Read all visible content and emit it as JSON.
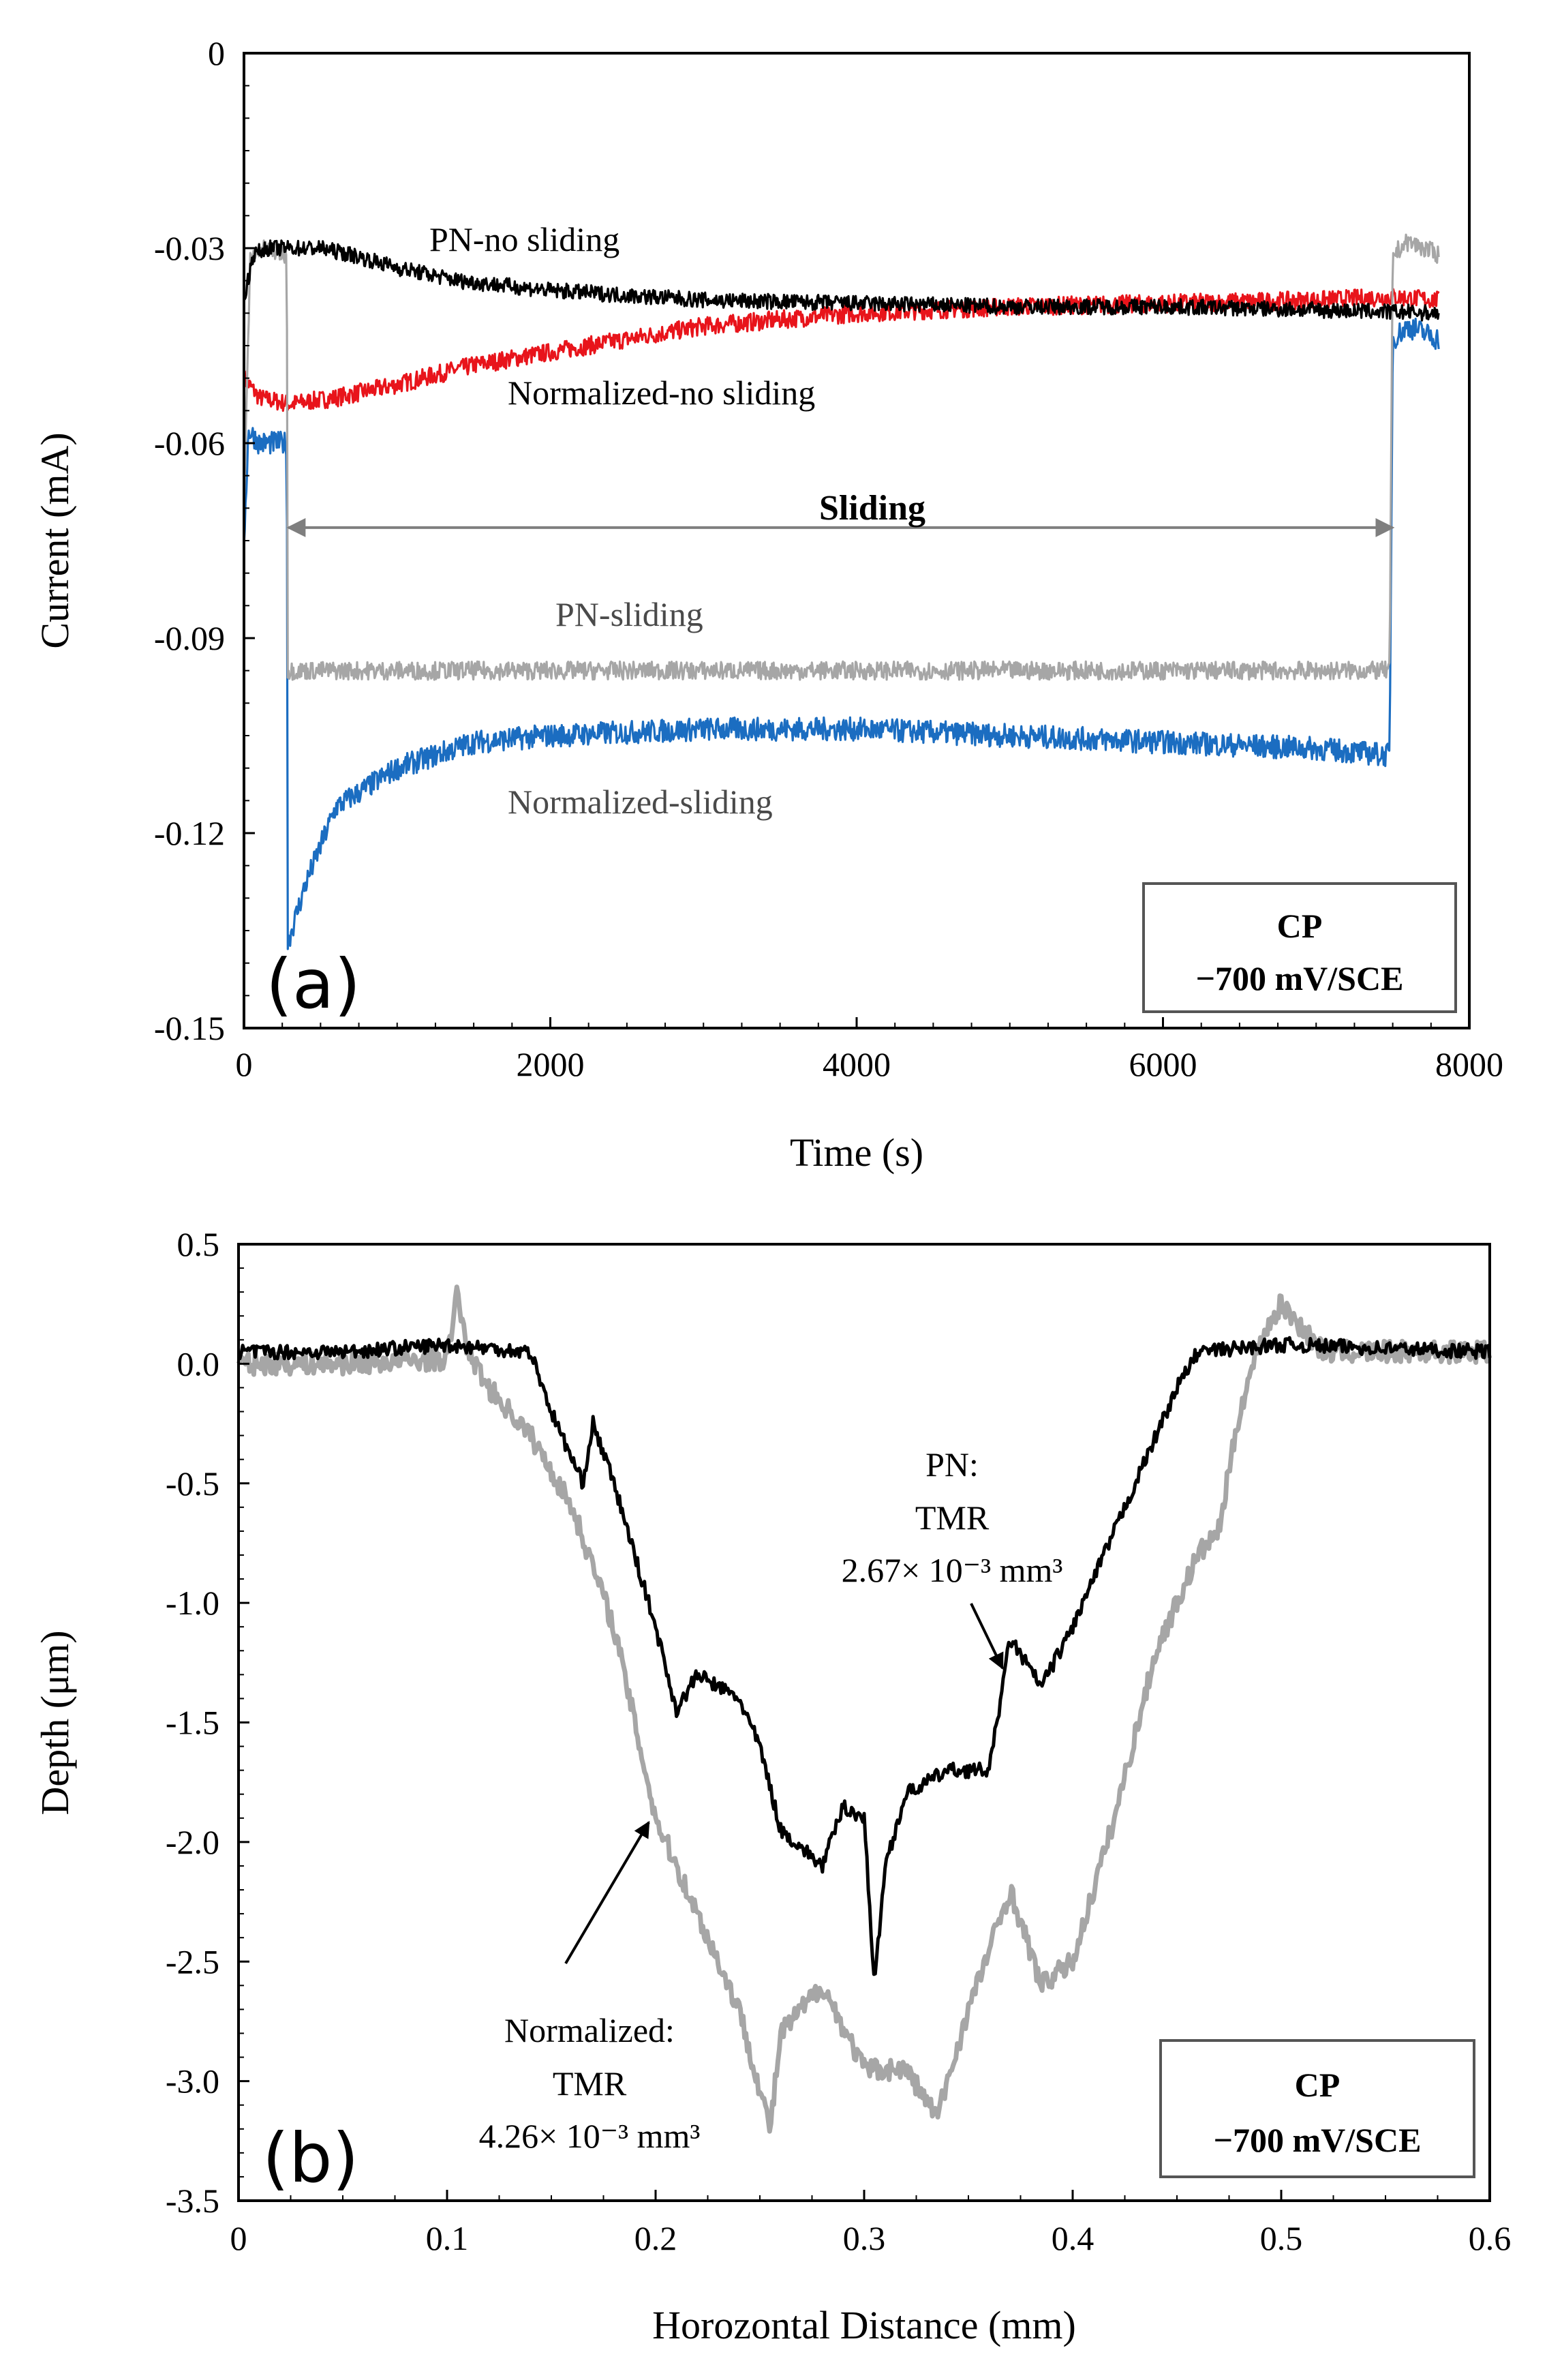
{
  "chart_data": [
    {
      "type": "line",
      "panel_label": "(a)",
      "xlabel": "Time (s)",
      "ylabel": "Current (mA)",
      "xlim": [
        0,
        8000
      ],
      "ylim": [
        -0.15,
        0
      ],
      "x_ticks": [
        "0",
        "2000",
        "4000",
        "6000",
        "8000"
      ],
      "y_ticks": [
        "0",
        "-0.03",
        "-0.06",
        "-0.09",
        "-0.12",
        "-0.15"
      ],
      "grid": false,
      "legend": "none",
      "series": [
        {
          "color": "#000000",
          "points": [
            [
              0,
              -0.038
            ],
            [
              60,
              -0.031
            ],
            [
              150,
              -0.03
            ],
            [
              300,
              -0.03
            ],
            [
              500,
              -0.03
            ],
            [
              700,
              -0.031
            ],
            [
              1000,
              -0.033
            ],
            [
              1400,
              -0.035
            ],
            [
              2000,
              -0.0365
            ],
            [
              3000,
              -0.038
            ],
            [
              4000,
              -0.0385
            ],
            [
              5000,
              -0.039
            ],
            [
              6000,
              -0.039
            ],
            [
              7000,
              -0.0395
            ],
            [
              7800,
              -0.04
            ]
          ]
        },
        {
          "color": "#e8141b",
          "points": [
            [
              0,
              -0.05
            ],
            [
              100,
              -0.053
            ],
            [
              300,
              -0.054
            ],
            [
              600,
              -0.053
            ],
            [
              1000,
              -0.051
            ],
            [
              1500,
              -0.048
            ],
            [
              2000,
              -0.046
            ],
            [
              3000,
              -0.042
            ],
            [
              4000,
              -0.04
            ],
            [
              5000,
              -0.039
            ],
            [
              6000,
              -0.0385
            ],
            [
              7000,
              -0.038
            ],
            [
              7500,
              -0.0375
            ],
            [
              7800,
              -0.038
            ]
          ]
        },
        {
          "color": "#1b6dc1",
          "points": [
            [
              0,
              -0.075
            ],
            [
              30,
              -0.058
            ],
            [
              100,
              -0.06
            ],
            [
              280,
              -0.06
            ],
            [
              285,
              -0.137
            ],
            [
              400,
              -0.128
            ],
            [
              600,
              -0.116
            ],
            [
              1000,
              -0.11
            ],
            [
              1500,
              -0.106
            ],
            [
              2000,
              -0.105
            ],
            [
              3000,
              -0.104
            ],
            [
              4000,
              -0.104
            ],
            [
              5000,
              -0.105
            ],
            [
              6000,
              -0.106
            ],
            [
              7000,
              -0.107
            ],
            [
              7480,
              -0.108
            ],
            [
              7500,
              -0.044
            ],
            [
              7600,
              -0.042
            ],
            [
              7800,
              -0.044
            ]
          ]
        },
        {
          "color": "#a6a6a6",
          "points": [
            [
              0,
              -0.07
            ],
            [
              40,
              -0.032
            ],
            [
              100,
              -0.03
            ],
            [
              280,
              -0.031
            ],
            [
              285,
              -0.095
            ],
            [
              1000,
              -0.095
            ],
            [
              2000,
              -0.095
            ],
            [
              3000,
              -0.095
            ],
            [
              4000,
              -0.095
            ],
            [
              5000,
              -0.095
            ],
            [
              6000,
              -0.095
            ],
            [
              7000,
              -0.095
            ],
            [
              7480,
              -0.095
            ],
            [
              7500,
              -0.031
            ],
            [
              7600,
              -0.029
            ],
            [
              7800,
              -0.031
            ]
          ]
        }
      ],
      "annotations": {
        "pn_no_sliding": "PN-no sliding",
        "normalized_no_sliding": "Normalized-no sliding",
        "sliding": "Sliding",
        "pn_sliding": "PN-sliding",
        "normalized_sliding": "Normalized-sliding",
        "sliding_arrow_x": [
          290,
          7500
        ],
        "sliding_arrow_y": -0.073
      },
      "condition_box": {
        "line1": "CP",
        "line2": "−700 mV/SCE"
      }
    },
    {
      "type": "line",
      "panel_label": "(b)",
      "xlabel": "Horozontal Distance (mm)",
      "ylabel": "Depth (μm)",
      "xlim": [
        0,
        0.6
      ],
      "ylim": [
        -3.5,
        0.5
      ],
      "x_ticks": [
        "0",
        "0.1",
        "0.2",
        "0.3",
        "0.4",
        "0.5",
        "0.6"
      ],
      "y_ticks": [
        "0.5",
        "0.0",
        "-0.5",
        "-1.0",
        "-1.5",
        "-2.0",
        "-2.5",
        "-3.0",
        "-3.5"
      ],
      "grid": false,
      "legend": "none",
      "series": [
        {
          "color": "#a6a6a6",
          "points": [
            [
              0,
              0.0
            ],
            [
              0.05,
              0.0
            ],
            [
              0.1,
              0.02
            ],
            [
              0.105,
              0.3
            ],
            [
              0.11,
              0.05
            ],
            [
              0.12,
              -0.1
            ],
            [
              0.14,
              -0.3
            ],
            [
              0.16,
              -0.6
            ],
            [
              0.18,
              -1.1
            ],
            [
              0.2,
              -1.9
            ],
            [
              0.22,
              -2.3
            ],
            [
              0.24,
              -2.7
            ],
            [
              0.255,
              -3.2
            ],
            [
              0.26,
              -2.8
            ],
            [
              0.28,
              -2.6
            ],
            [
              0.3,
              -2.95
            ],
            [
              0.32,
              -2.95
            ],
            [
              0.335,
              -3.15
            ],
            [
              0.35,
              -2.7
            ],
            [
              0.37,
              -2.2
            ],
            [
              0.385,
              -2.6
            ],
            [
              0.4,
              -2.5
            ],
            [
              0.42,
              -1.9
            ],
            [
              0.44,
              -1.2
            ],
            [
              0.46,
              -0.8
            ],
            [
              0.47,
              -0.7
            ],
            [
              0.48,
              -0.2
            ],
            [
              0.49,
              0.1
            ],
            [
              0.5,
              0.25
            ],
            [
              0.52,
              0.05
            ],
            [
              0.55,
              0.05
            ],
            [
              0.6,
              0.05
            ]
          ]
        },
        {
          "color": "#000000",
          "points": [
            [
              0,
              0.05
            ],
            [
              0.05,
              0.05
            ],
            [
              0.1,
              0.08
            ],
            [
              0.14,
              0.05
            ],
            [
              0.15,
              -0.2
            ],
            [
              0.165,
              -0.5
            ],
            [
              0.17,
              -0.25
            ],
            [
              0.18,
              -0.5
            ],
            [
              0.19,
              -0.8
            ],
            [
              0.2,
              -1.1
            ],
            [
              0.21,
              -1.45
            ],
            [
              0.22,
              -1.3
            ],
            [
              0.24,
              -1.4
            ],
            [
              0.25,
              -1.6
            ],
            [
              0.26,
              -1.95
            ],
            [
              0.28,
              -2.1
            ],
            [
              0.29,
              -1.85
            ],
            [
              0.3,
              -1.9
            ],
            [
              0.305,
              -2.6
            ],
            [
              0.31,
              -2.1
            ],
            [
              0.32,
              -1.8
            ],
            [
              0.34,
              -1.7
            ],
            [
              0.36,
              -1.7
            ],
            [
              0.37,
              -1.15
            ],
            [
              0.385,
              -1.35
            ],
            [
              0.4,
              -1.1
            ],
            [
              0.41,
              -0.9
            ],
            [
              0.43,
              -0.5
            ],
            [
              0.45,
              -0.1
            ],
            [
              0.46,
              0.05
            ],
            [
              0.5,
              0.08
            ],
            [
              0.6,
              0.05
            ]
          ]
        }
      ],
      "annotations": {
        "pn_line1": "PN:",
        "pn_line2": "TMR",
        "pn_line3": "2.67× 10⁻³ mm³",
        "norm_line1": "Normalized:",
        "norm_line2": "TMR",
        "norm_line3": "4.26× 10⁻³ mm³"
      },
      "condition_box": {
        "line1": "CP",
        "line2": "−700 mV/SCE"
      }
    }
  ]
}
